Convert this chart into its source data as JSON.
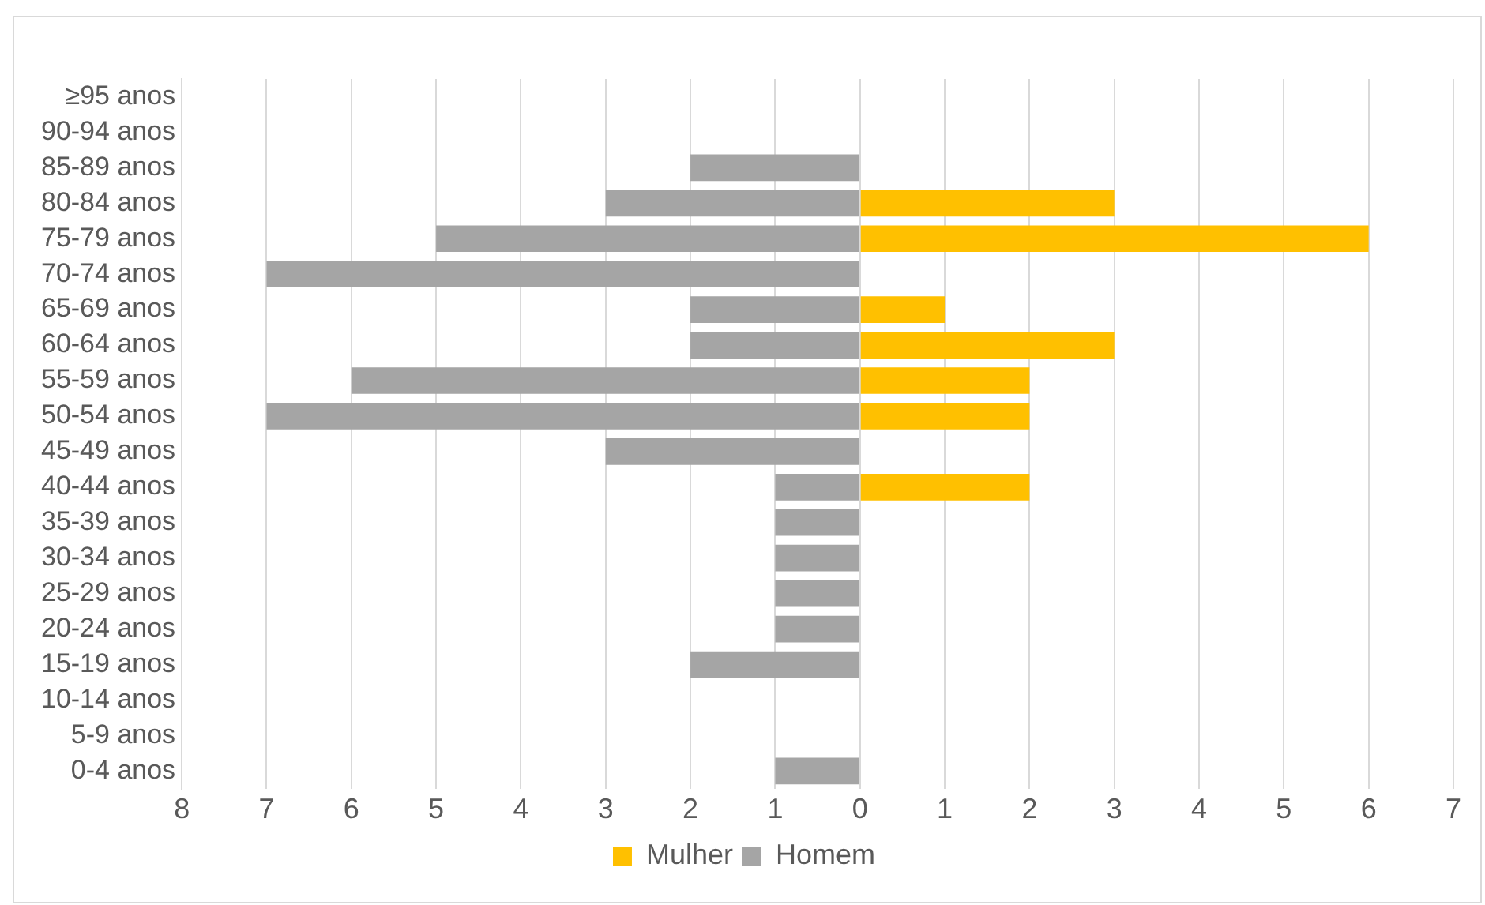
{
  "chart_data": {
    "type": "bar",
    "orientation": "horizontal",
    "categories": [
      "≥95 anos",
      "90-94 anos",
      "85-89 anos",
      "80-84 anos",
      "75-79 anos",
      "70-74 anos",
      "65-69 anos",
      "60-64 anos",
      "55-59 anos",
      "50-54 anos",
      "45-49 anos",
      "40-44 anos",
      "35-39 anos",
      "30-34 anos",
      "25-29 anos",
      "20-24 anos",
      "15-19 anos",
      "10-14 anos",
      "5-9 anos",
      "0-4 anos"
    ],
    "series": [
      {
        "name": "Mulher",
        "color": "#ffc000",
        "values": [
          null,
          null,
          null,
          3,
          6,
          null,
          1,
          3,
          2,
          2,
          null,
          2,
          null,
          null,
          null,
          null,
          null,
          null,
          null,
          null
        ]
      },
      {
        "name": "Homem",
        "color": "#a5a5a5",
        "values": [
          null,
          null,
          -2,
          -3,
          -5,
          -7,
          -2,
          -2,
          -6,
          -7,
          -3,
          -1,
          -1,
          -1,
          -1,
          -1,
          -2,
          null,
          null,
          -1
        ]
      }
    ],
    "xlim": [
      -8,
      7
    ],
    "xticks": [
      {
        "value": -8,
        "label": "8"
      },
      {
        "value": -7,
        "label": "7"
      },
      {
        "value": -6,
        "label": "6"
      },
      {
        "value": -5,
        "label": "5"
      },
      {
        "value": -4,
        "label": "4"
      },
      {
        "value": -3,
        "label": "3"
      },
      {
        "value": -2,
        "label": "2"
      },
      {
        "value": -1,
        "label": "1"
      },
      0,
      1,
      2,
      3,
      4,
      5,
      6,
      7
    ],
    "grid": "x",
    "legend": "bottom"
  }
}
